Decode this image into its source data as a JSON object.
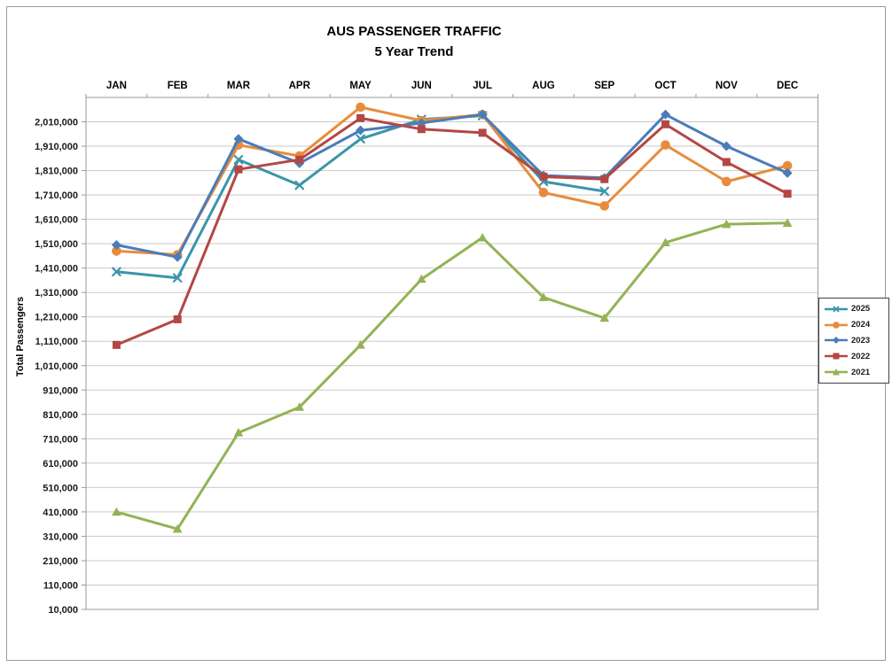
{
  "chart_data": {
    "type": "line",
    "title": "AUS PASSENGER TRAFFIC",
    "subtitle": "5 Year Trend",
    "ylabel": "Total Passengers",
    "xlabel": "",
    "grid": true,
    "legend_position": "right",
    "categories": [
      "JAN",
      "FEB",
      "MAR",
      "APR",
      "MAY",
      "JUN",
      "JUL",
      "AUG",
      "SEP",
      "OCT",
      "NOV",
      "DEC"
    ],
    "y_axis": {
      "tick_min": 10000,
      "tick_max": 2010000,
      "tick_step": 100000,
      "plot_top_value": 2110000,
      "plot_bottom_value": 10000
    },
    "series": [
      {
        "name": "2025",
        "color": "#3B95A9",
        "marker": "x",
        "values": [
          1395000,
          1370000,
          1855000,
          1750000,
          1940000,
          2020000,
          2035000,
          1765000,
          1725000,
          null,
          null,
          null
        ]
      },
      {
        "name": "2024",
        "color": "#E78C3C",
        "marker": "circle",
        "values": [
          1480000,
          1465000,
          1915000,
          1870000,
          2070000,
          2015000,
          2040000,
          1720000,
          1665000,
          1915000,
          1765000,
          1830000
        ]
      },
      {
        "name": "2023",
        "color": "#4A7CBA",
        "marker": "diamond",
        "values": [
          1505000,
          1455000,
          1940000,
          1840000,
          1975000,
          2005000,
          2040000,
          1790000,
          1780000,
          2040000,
          1910000,
          1800000
        ]
      },
      {
        "name": "2022",
        "color": "#B34746",
        "marker": "square",
        "values": [
          1095000,
          1200000,
          1815000,
          1855000,
          2025000,
          1980000,
          1965000,
          1785000,
          1775000,
          2000000,
          1845000,
          1715000
        ]
      },
      {
        "name": "2021",
        "color": "#92B354",
        "marker": "triangle",
        "values": [
          410000,
          340000,
          735000,
          840000,
          1095000,
          1365000,
          1535000,
          1290000,
          1205000,
          1515000,
          1590000,
          1595000
        ]
      }
    ],
    "colors": {
      "gridline": "#C9C9C9",
      "frame": "#9a9a9a",
      "axis_text": "#1a1a1a"
    }
  }
}
